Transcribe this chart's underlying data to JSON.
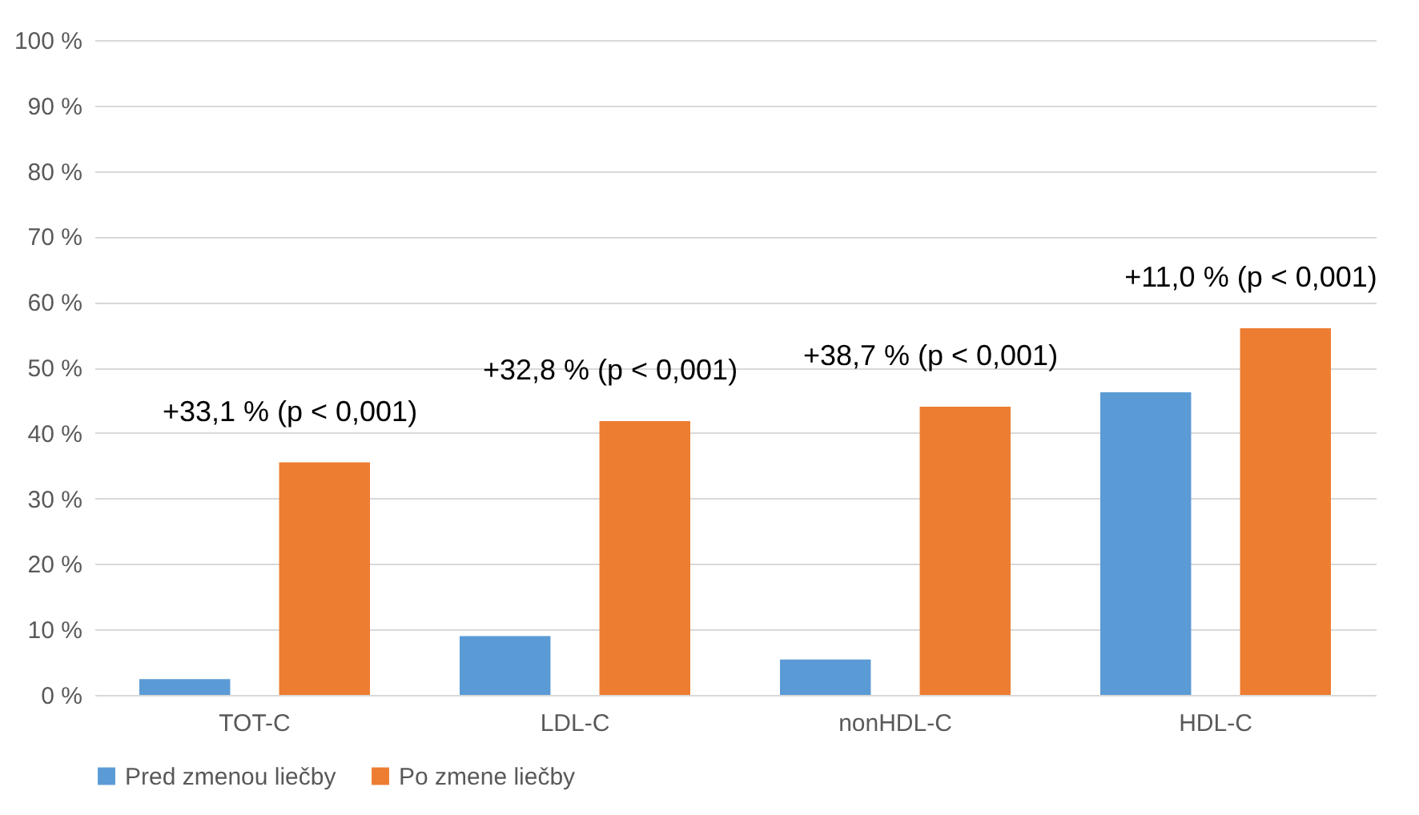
{
  "chart_data": {
    "type": "bar",
    "categories": [
      "TOT-C",
      "LDL-C",
      "nonHDL-C",
      "HDL-C"
    ],
    "series": [
      {
        "name": "Pred zmenou liečby",
        "color": "#5b9bd5",
        "values": [
          2.4,
          9.0,
          5.4,
          46.2
        ]
      },
      {
        "name": "Po zmene liečby",
        "color": "#ed7d31",
        "values": [
          35.5,
          41.8,
          44.0,
          56.0
        ]
      }
    ],
    "ylim": [
      0,
      100
    ],
    "yticks": [
      {
        "value": 0,
        "label": "0 %"
      },
      {
        "value": 10,
        "label": "10 %"
      },
      {
        "value": 20,
        "label": "20 %"
      },
      {
        "value": 30,
        "label": "30 %"
      },
      {
        "value": 40,
        "label": "40 %"
      },
      {
        "value": 50,
        "label": "50 %"
      },
      {
        "value": 60,
        "label": "60 %"
      },
      {
        "value": 70,
        "label": "70 %"
      },
      {
        "value": 80,
        "label": "80 %"
      },
      {
        "value": 90,
        "label": "90 %"
      },
      {
        "value": 100,
        "label": "100 %"
      }
    ],
    "annotations": [
      "+33,1 % (p < 0,001)",
      "+32,8 % (p < 0,001)",
      "+38,7 % (p < 0,001)",
      "+11,0 % (p < 0,001)"
    ],
    "grid": "y",
    "legend": "bottom"
  }
}
